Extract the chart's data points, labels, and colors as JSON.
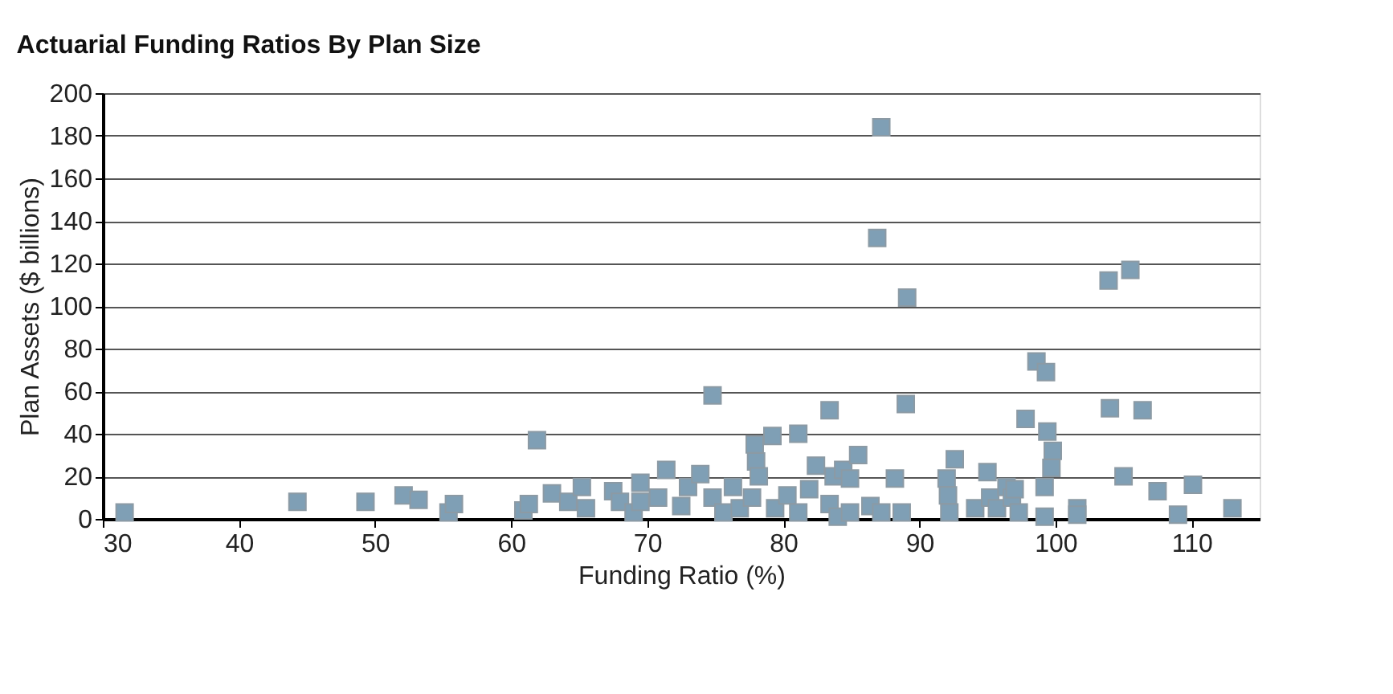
{
  "chart_data": {
    "type": "scatter",
    "title": "Actuarial Funding Ratios By Plan Size",
    "xlabel": "Funding Ratio (%)",
    "ylabel": "Plan Assets ($ billions)",
    "x": [
      31.6,
      44.3,
      49.3,
      52.1,
      53.2,
      55.4,
      55.8,
      60.9,
      61.3,
      61.9,
      63,
      64.2,
      65.2,
      65.5,
      67.5,
      68,
      69,
      69.5,
      69.5,
      70.8,
      71.4,
      72.5,
      73,
      73.9,
      74.8,
      74.8,
      75.6,
      76.3,
      76.8,
      77.7,
      77.9,
      78,
      78.2,
      79.2,
      79.4,
      80.3,
      81.1,
      81.1,
      81.9,
      82.4,
      83.4,
      83.4,
      83.7,
      84,
      84.4,
      84.9,
      84.9,
      85.5,
      86.4,
      86.9,
      87.2,
      87.2,
      88.2,
      88.7,
      89,
      89.1,
      92,
      92.1,
      92.2,
      92.6,
      94.1,
      95,
      95.2,
      95.7,
      96.4,
      96.8,
      97,
      97.3,
      97.8,
      98.6,
      99.2,
      99.2,
      99.3,
      99.4,
      99.8,
      99.7,
      101.6,
      101.6,
      103.9,
      104,
      105,
      105.5,
      106.4,
      107.5,
      109,
      110.1,
      113
    ],
    "series": [
      {
        "color": "#7f9fb5",
        "values": [
          3,
          8,
          8,
          11,
          9,
          3,
          7,
          4,
          7,
          37,
          12,
          8,
          15,
          5,
          13,
          8,
          3,
          17,
          8,
          10,
          23,
          6,
          15,
          21,
          58,
          10,
          3,
          15,
          5,
          10,
          35,
          27,
          20,
          39,
          5,
          11,
          3,
          40,
          14,
          25,
          51,
          7,
          20,
          1,
          23,
          19,
          3,
          30,
          6,
          132,
          184,
          3,
          19,
          3,
          54,
          104,
          19,
          11,
          3,
          28,
          5,
          22,
          10,
          5,
          15,
          10,
          14,
          3,
          47,
          74,
          15,
          1,
          69,
          41,
          32,
          24,
          5,
          2,
          112,
          52,
          20,
          117,
          51,
          13,
          2,
          16,
          5
        ]
      }
    ],
    "xlim": [
      30,
      115
    ],
    "xticks": [
      30,
      40,
      50,
      60,
      70,
      80,
      90,
      100,
      110
    ],
    "ylim": [
      0,
      200
    ],
    "yticks": [
      0,
      20,
      40,
      60,
      80,
      100,
      120,
      140,
      160,
      180,
      200
    ],
    "grid": "y",
    "marker": "square"
  }
}
